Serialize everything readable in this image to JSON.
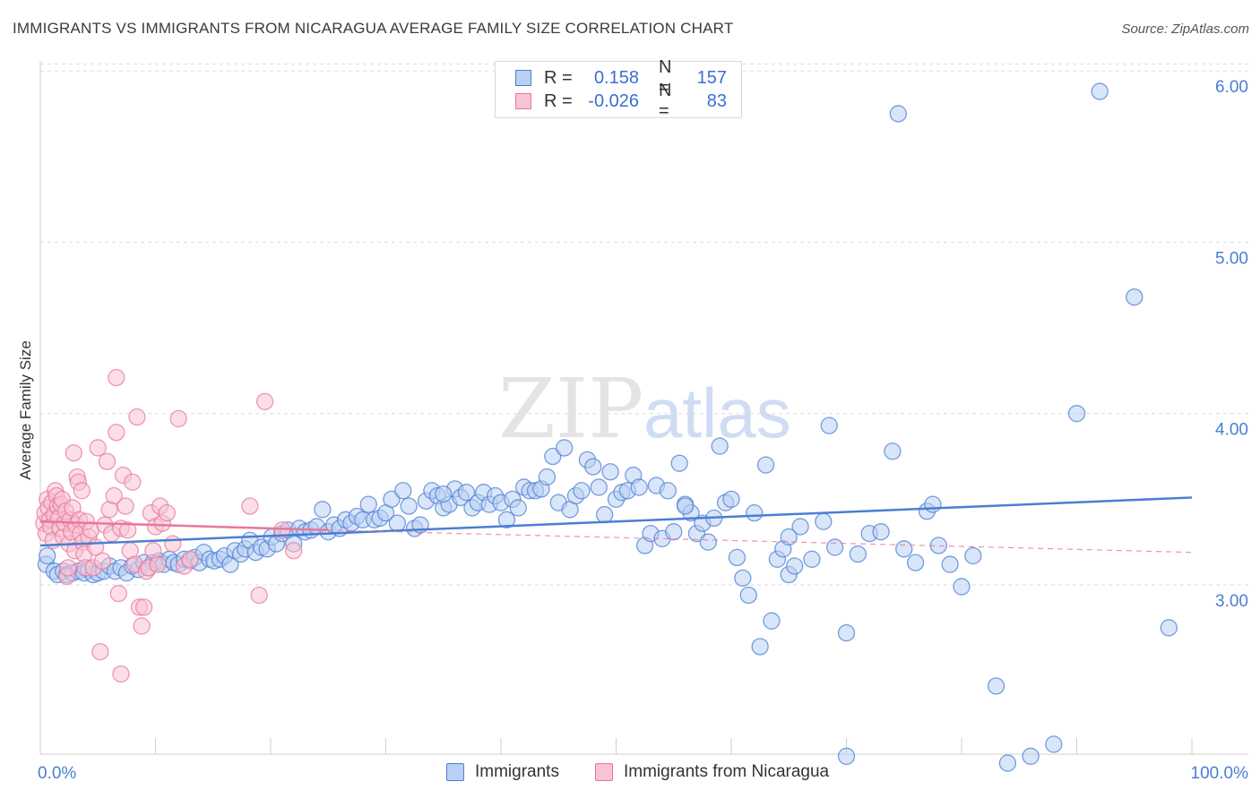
{
  "title": "IMMIGRANTS VS IMMIGRANTS FROM NICARAGUA AVERAGE FAMILY SIZE CORRELATION CHART",
  "source": "Source: ZipAtlas.com",
  "watermark": {
    "zip": "ZIP",
    "atlas": "atlas"
  },
  "legend": {
    "rows": [
      {
        "r_label": "R =",
        "r_value": "0.158",
        "n_label": "N =",
        "n_value": "157",
        "color": "#4a7fd4",
        "fill": "#b9cff3"
      },
      {
        "r_label": "R =",
        "r_value": "-0.026",
        "n_label": "N =",
        "n_value": "83",
        "color": "#e8779b",
        "fill": "#f8c3d3"
      }
    ]
  },
  "bottom_legend": [
    {
      "label": "Immigrants",
      "color": "#4a7fd4",
      "fill": "#b9cff3"
    },
    {
      "label": "Immigrants from Nicaragua",
      "color": "#e8779b",
      "fill": "#f8c3d3"
    }
  ],
  "chart_data": {
    "type": "scatter",
    "title": "IMMIGRANTS VS IMMIGRANTS FROM NICARAGUA AVERAGE FAMILY SIZE CORRELATION CHART",
    "xlabel": "",
    "ylabel": "Average Family Size",
    "x_ticks": [
      "0.0%",
      "100.0%"
    ],
    "y_ticks": [
      "3.00",
      "4.00",
      "5.00",
      "6.00"
    ],
    "y_tick_values": [
      3.0,
      4.0,
      5.0,
      6.0
    ],
    "xlim": [
      0,
      100
    ],
    "ylim": [
      2.05,
      6.12
    ],
    "grid": true,
    "legend_position": "top-center",
    "series": [
      {
        "name": "Immigrants",
        "color": "#4a7fd4",
        "fill": "#b9cff3",
        "trend": {
          "x": [
            0,
            100
          ],
          "y": [
            3.23,
            3.51
          ],
          "dashed_x": null
        },
        "points": [
          [
            0.5,
            3.12
          ],
          [
            0.6,
            3.17
          ],
          [
            1.2,
            3.08
          ],
          [
            1.5,
            3.06
          ],
          [
            2.0,
            3.08
          ],
          [
            2.3,
            3.06
          ],
          [
            2.8,
            3.07
          ],
          [
            3.3,
            3.08
          ],
          [
            3.8,
            3.07
          ],
          [
            4.2,
            3.09
          ],
          [
            4.6,
            3.06
          ],
          [
            5.0,
            3.07
          ],
          [
            5.5,
            3.08
          ],
          [
            6.0,
            3.11
          ],
          [
            6.5,
            3.08
          ],
          [
            7.0,
            3.1
          ],
          [
            7.5,
            3.07
          ],
          [
            8.0,
            3.11
          ],
          [
            8.5,
            3.09
          ],
          [
            9.0,
            3.13
          ],
          [
            9.4,
            3.1
          ],
          [
            9.8,
            3.13
          ],
          [
            10.3,
            3.14
          ],
          [
            10.7,
            3.12
          ],
          [
            11.2,
            3.15
          ],
          [
            11.6,
            3.13
          ],
          [
            12.0,
            3.12
          ],
          [
            12.5,
            3.15
          ],
          [
            13.0,
            3.14
          ],
          [
            13.4,
            3.16
          ],
          [
            13.8,
            3.13
          ],
          [
            14.2,
            3.19
          ],
          [
            14.7,
            3.15
          ],
          [
            15.1,
            3.14
          ],
          [
            15.6,
            3.15
          ],
          [
            16.0,
            3.17
          ],
          [
            16.5,
            3.12
          ],
          [
            16.9,
            3.2
          ],
          [
            17.4,
            3.18
          ],
          [
            17.8,
            3.21
          ],
          [
            18.2,
            3.26
          ],
          [
            18.7,
            3.19
          ],
          [
            19.2,
            3.22
          ],
          [
            19.7,
            3.21
          ],
          [
            20.1,
            3.28
          ],
          [
            20.5,
            3.24
          ],
          [
            21.0,
            3.3
          ],
          [
            21.5,
            3.32
          ],
          [
            22.0,
            3.24
          ],
          [
            22.5,
            3.33
          ],
          [
            23.0,
            3.31
          ],
          [
            23.5,
            3.32
          ],
          [
            24.0,
            3.34
          ],
          [
            24.5,
            3.44
          ],
          [
            25.0,
            3.31
          ],
          [
            25.5,
            3.35
          ],
          [
            26.0,
            3.33
          ],
          [
            26.5,
            3.38
          ],
          [
            27.0,
            3.36
          ],
          [
            27.5,
            3.4
          ],
          [
            28.0,
            3.38
          ],
          [
            28.5,
            3.47
          ],
          [
            29.0,
            3.38
          ],
          [
            29.5,
            3.39
          ],
          [
            30.0,
            3.42
          ],
          [
            30.5,
            3.5
          ],
          [
            31.0,
            3.36
          ],
          [
            31.5,
            3.55
          ],
          [
            32.0,
            3.46
          ],
          [
            32.5,
            3.33
          ],
          [
            33.0,
            3.35
          ],
          [
            33.5,
            3.49
          ],
          [
            34.0,
            3.55
          ],
          [
            34.5,
            3.52
          ],
          [
            35.0,
            3.45
          ],
          [
            35.5,
            3.47
          ],
          [
            36.0,
            3.56
          ],
          [
            36.5,
            3.51
          ],
          [
            37.0,
            3.54
          ],
          [
            37.5,
            3.45
          ],
          [
            38.0,
            3.48
          ],
          [
            38.5,
            3.54
          ],
          [
            39.0,
            3.47
          ],
          [
            39.5,
            3.52
          ],
          [
            40.0,
            3.48
          ],
          [
            40.5,
            3.38
          ],
          [
            41.0,
            3.5
          ],
          [
            41.5,
            3.45
          ],
          [
            42.0,
            3.57
          ],
          [
            42.5,
            3.55
          ],
          [
            43.0,
            3.55
          ],
          [
            43.5,
            3.56
          ],
          [
            44.0,
            3.63
          ],
          [
            44.5,
            3.75
          ],
          [
            45.0,
            3.48
          ],
          [
            45.5,
            3.8
          ],
          [
            46.0,
            3.44
          ],
          [
            46.5,
            3.52
          ],
          [
            47.0,
            3.55
          ],
          [
            47.5,
            3.73
          ],
          [
            48.0,
            3.69
          ],
          [
            48.5,
            3.57
          ],
          [
            49.0,
            3.41
          ],
          [
            49.5,
            3.66
          ],
          [
            50.0,
            3.5
          ],
          [
            50.5,
            3.54
          ],
          [
            51.0,
            3.55
          ],
          [
            51.5,
            3.64
          ],
          [
            52.0,
            3.57
          ],
          [
            52.5,
            3.23
          ],
          [
            53.0,
            3.3
          ],
          [
            53.5,
            3.58
          ],
          [
            54.0,
            3.27
          ],
          [
            54.5,
            3.55
          ],
          [
            55.0,
            3.31
          ],
          [
            55.5,
            3.71
          ],
          [
            56.0,
            3.47
          ],
          [
            56.5,
            3.42
          ],
          [
            57.0,
            3.3
          ],
          [
            57.5,
            3.36
          ],
          [
            58.0,
            3.25
          ],
          [
            58.5,
            3.39
          ],
          [
            59.0,
            3.81
          ],
          [
            59.5,
            3.48
          ],
          [
            60.0,
            3.5
          ],
          [
            60.5,
            3.16
          ],
          [
            61.0,
            3.04
          ],
          [
            61.5,
            2.94
          ],
          [
            62.0,
            3.42
          ],
          [
            62.5,
            2.64
          ],
          [
            63.0,
            3.7
          ],
          [
            63.5,
            2.79
          ],
          [
            64.0,
            3.15
          ],
          [
            64.5,
            3.21
          ],
          [
            65.0,
            3.06
          ],
          [
            65.5,
            3.11
          ],
          [
            66.0,
            3.34
          ],
          [
            67.0,
            3.15
          ],
          [
            68.0,
            3.37
          ],
          [
            68.5,
            3.93
          ],
          [
            69.0,
            3.22
          ],
          [
            70.0,
            2.72
          ],
          [
            71.0,
            3.18
          ],
          [
            72.0,
            3.3
          ],
          [
            73.0,
            3.31
          ],
          [
            74.0,
            3.78
          ],
          [
            74.5,
            5.75
          ],
          [
            75.0,
            3.21
          ],
          [
            76.0,
            3.13
          ],
          [
            77.0,
            3.43
          ],
          [
            78.0,
            3.23
          ],
          [
            79.0,
            3.12
          ],
          [
            80.0,
            2.99
          ],
          [
            81.0,
            3.17
          ],
          [
            83.0,
            2.41
          ],
          [
            84.0,
            1.96
          ],
          [
            86.0,
            2.0
          ],
          [
            88.0,
            2.07
          ],
          [
            90.0,
            4.0
          ],
          [
            92.0,
            5.88
          ],
          [
            95.0,
            4.68
          ],
          [
            98.0,
            2.75
          ],
          [
            70.0,
            2.0
          ],
          [
            65.0,
            3.28
          ],
          [
            77.5,
            3.47
          ],
          [
            56.0,
            3.46
          ],
          [
            35.0,
            3.53
          ]
        ]
      },
      {
        "name": "Immigrants from Nicaragua",
        "color": "#e8779b",
        "fill": "#f8c3d3",
        "trend": {
          "x": [
            0,
            25
          ],
          "y": [
            3.37,
            3.32
          ],
          "dashed_x": [
            25,
            100
          ],
          "dashed_y": [
            3.32,
            3.19
          ]
        },
        "points": [
          [
            0.3,
            3.36
          ],
          [
            0.4,
            3.42
          ],
          [
            0.5,
            3.3
          ],
          [
            0.6,
            3.5
          ],
          [
            0.7,
            3.45
          ],
          [
            0.8,
            3.38
          ],
          [
            0.9,
            3.34
          ],
          [
            1.0,
            3.48
          ],
          [
            1.1,
            3.26
          ],
          [
            1.2,
            3.41
          ],
          [
            1.3,
            3.55
          ],
          [
            1.4,
            3.52
          ],
          [
            1.5,
            3.46
          ],
          [
            1.6,
            3.39
          ],
          [
            1.7,
            3.33
          ],
          [
            1.8,
            3.47
          ],
          [
            1.9,
            3.5
          ],
          [
            2.0,
            3.28
          ],
          [
            2.1,
            3.36
          ],
          [
            2.2,
            3.43
          ],
          [
            2.3,
            3.05
          ],
          [
            2.4,
            3.1
          ],
          [
            2.5,
            3.24
          ],
          [
            2.6,
            3.38
          ],
          [
            2.7,
            3.31
          ],
          [
            2.8,
            3.45
          ],
          [
            2.9,
            3.77
          ],
          [
            3.0,
            3.2
          ],
          [
            3.1,
            3.35
          ],
          [
            3.2,
            3.63
          ],
          [
            3.3,
            3.6
          ],
          [
            3.4,
            3.38
          ],
          [
            3.5,
            3.3
          ],
          [
            3.6,
            3.55
          ],
          [
            3.7,
            3.25
          ],
          [
            3.8,
            3.18
          ],
          [
            3.9,
            3.1
          ],
          [
            4.0,
            3.37
          ],
          [
            4.2,
            3.28
          ],
          [
            4.4,
            3.32
          ],
          [
            4.6,
            3.1
          ],
          [
            4.8,
            3.22
          ],
          [
            5.0,
            3.8
          ],
          [
            5.2,
            2.61
          ],
          [
            5.4,
            3.14
          ],
          [
            5.6,
            3.35
          ],
          [
            5.8,
            3.72
          ],
          [
            6.0,
            3.44
          ],
          [
            6.2,
            3.3
          ],
          [
            6.4,
            3.52
          ],
          [
            6.6,
            3.89
          ],
          [
            6.8,
            2.95
          ],
          [
            7.0,
            3.33
          ],
          [
            7.2,
            3.64
          ],
          [
            7.4,
            3.46
          ],
          [
            7.6,
            3.32
          ],
          [
            7.8,
            3.2
          ],
          [
            8.0,
            3.6
          ],
          [
            8.2,
            3.12
          ],
          [
            8.4,
            3.98
          ],
          [
            8.6,
            2.87
          ],
          [
            8.8,
            2.76
          ],
          [
            9.0,
            2.87
          ],
          [
            9.2,
            3.08
          ],
          [
            9.4,
            3.1
          ],
          [
            9.6,
            3.42
          ],
          [
            9.8,
            3.2
          ],
          [
            10.0,
            3.34
          ],
          [
            10.2,
            3.12
          ],
          [
            10.4,
            3.46
          ],
          [
            10.6,
            3.36
          ],
          [
            11.0,
            3.42
          ],
          [
            11.5,
            3.24
          ],
          [
            12.0,
            3.97
          ],
          [
            12.5,
            3.11
          ],
          [
            13.0,
            3.15
          ],
          [
            6.6,
            4.21
          ],
          [
            18.2,
            3.46
          ],
          [
            19.0,
            2.94
          ],
          [
            19.5,
            4.07
          ],
          [
            21.0,
            3.32
          ],
          [
            22.0,
            3.2
          ],
          [
            7.0,
            2.48
          ]
        ]
      }
    ]
  }
}
